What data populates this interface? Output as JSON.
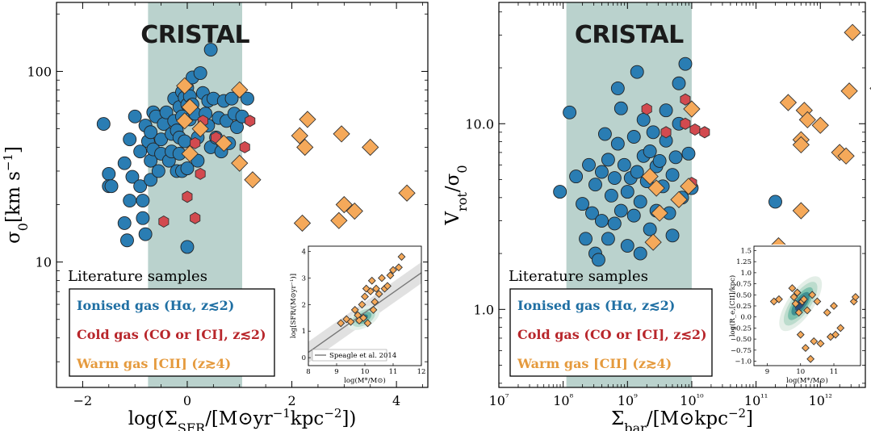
{
  "colors": {
    "ionised": "#2a7db3",
    "cold": "#d24a4f",
    "warm": "#f5a95a",
    "band": "#b6d0ca",
    "inset_line": "#777777"
  },
  "chart_data": [
    {
      "type": "scatter",
      "brand": "CRISTAL",
      "xlabel": "log(Σ_SFR/[M⊙yr⁻¹kpc⁻²])",
      "ylabel": "σ₀[km s⁻¹]",
      "xlim": [
        -2.5,
        4.6
      ],
      "ylim": [
        2.2,
        230
      ],
      "yscale": "log",
      "band": [
        -0.75,
        1.05
      ],
      "x_ticks": [
        "−2",
        "0",
        "2",
        "4"
      ],
      "y_ticks": [
        "10",
        "100"
      ],
      "legend": {
        "title": "Literature samples",
        "entries": [
          "Ionised gas (Hα, z≲2)",
          "Cold gas (CO or [CI], z≲2)",
          "Warm gas [CII] (z≳4)"
        ]
      },
      "series": [
        {
          "name": "Ionised gas (Hα, z≲2)",
          "marker": "circle",
          "points": [
            [
              -1.6,
              53
            ],
            [
              -1.5,
              29
            ],
            [
              -1.5,
              25
            ],
            [
              -1.45,
              25
            ],
            [
              -1.2,
              33
            ],
            [
              -1.2,
              16
            ],
            [
              -1.15,
              13
            ],
            [
              -1.1,
              44
            ],
            [
              -1.1,
              21
            ],
            [
              -1.05,
              28
            ],
            [
              -1.0,
              58
            ],
            [
              -0.9,
              38
            ],
            [
              -0.9,
              25
            ],
            [
              -0.85,
              21
            ],
            [
              -0.85,
              17
            ],
            [
              -0.8,
              14
            ],
            [
              -0.8,
              52
            ],
            [
              -0.75,
              43
            ],
            [
              -0.7,
              48
            ],
            [
              -0.7,
              34
            ],
            [
              -0.7,
              27
            ],
            [
              -0.65,
              61
            ],
            [
              -0.65,
              39
            ],
            [
              -0.6,
              58
            ],
            [
              -0.55,
              30
            ],
            [
              -0.5,
              44
            ],
            [
              -0.5,
              37
            ],
            [
              -0.45,
              53
            ],
            [
              -0.4,
              61
            ],
            [
              -0.35,
              34
            ],
            [
              -0.3,
              47
            ],
            [
              -0.3,
              38
            ],
            [
              -0.25,
              72
            ],
            [
              -0.25,
              55
            ],
            [
              -0.2,
              49
            ],
            [
              -0.2,
              30
            ],
            [
              -0.15,
              65
            ],
            [
              -0.15,
              45
            ],
            [
              -0.15,
              37
            ],
            [
              -0.1,
              78
            ],
            [
              -0.1,
              58
            ],
            [
              -0.1,
              30
            ],
            [
              -0.05,
              73
            ],
            [
              -0.05,
              43
            ],
            [
              0.0,
              82
            ],
            [
              0.0,
              67
            ],
            [
              0.0,
              31
            ],
            [
              0.0,
              12
            ],
            [
              0.05,
              74
            ],
            [
              0.05,
              56
            ],
            [
              0.1,
              93
            ],
            [
              0.1,
              67
            ],
            [
              0.15,
              60
            ],
            [
              0.2,
              45
            ],
            [
              0.2,
              34
            ],
            [
              0.25,
              98
            ],
            [
              0.3,
              77
            ],
            [
              0.35,
              60
            ],
            [
              0.4,
              70
            ],
            [
              0.4,
              52
            ],
            [
              0.45,
              130
            ],
            [
              0.45,
              40
            ],
            [
              0.5,
              72
            ],
            [
              0.55,
              45
            ],
            [
              0.6,
              57
            ],
            [
              0.65,
              38
            ],
            [
              0.7,
              70
            ],
            [
              0.75,
              55
            ],
            [
              0.8,
              42
            ],
            [
              0.85,
              72
            ],
            [
              0.9,
              60
            ],
            [
              0.95,
              51
            ],
            [
              1.05,
              58
            ],
            [
              1.15,
              72
            ]
          ]
        },
        {
          "name": "Cold gas (CO or [CI], z≲2)",
          "marker": "hexagon",
          "points": [
            [
              -0.45,
              16.3
            ],
            [
              0.0,
              22
            ],
            [
              0.15,
              42
            ],
            [
              0.15,
              17
            ],
            [
              0.25,
              29
            ],
            [
              0.3,
              55
            ],
            [
              0.55,
              45
            ],
            [
              1.1,
              40
            ],
            [
              1.2,
              55
            ]
          ]
        },
        {
          "name": "Warm gas [CII] (z≳4)",
          "marker": "diamond",
          "points": [
            [
              -0.05,
              84
            ],
            [
              -0.05,
              55
            ],
            [
              0.05,
              37
            ],
            [
              0.05,
              65
            ],
            [
              0.25,
              50
            ],
            [
              0.7,
              42
            ],
            [
              1.0,
              80
            ],
            [
              1.0,
              33
            ],
            [
              1.25,
              27
            ],
            [
              2.15,
              46
            ],
            [
              2.2,
              16
            ],
            [
              2.25,
              40
            ],
            [
              2.3,
              56
            ],
            [
              2.9,
              16.5
            ],
            [
              2.95,
              47
            ],
            [
              3.0,
              20
            ],
            [
              3.2,
              18.5
            ],
            [
              3.5,
              40
            ],
            [
              4.2,
              23
            ]
          ]
        }
      ],
      "inset": {
        "xlabel": "log(M*/M⊙)",
        "ylabel": "log[SFR/(M⊙yr⁻¹)]",
        "x_ticks": [
          "8",
          "9",
          "10",
          "11",
          "12"
        ],
        "y_ticks": [
          "0",
          "1",
          "2",
          "3",
          "4"
        ],
        "xlim": [
          8,
          12
        ],
        "ylim": [
          -0.3,
          4.2
        ],
        "relation_label": "Speagle et al. 2014",
        "relation": [
          [
            8,
            0.2
          ],
          [
            12,
            3.2
          ]
        ],
        "points": [
          [
            9.15,
            1.3
          ],
          [
            9.35,
            1.45
          ],
          [
            9.5,
            1.35
          ],
          [
            9.65,
            1.8
          ],
          [
            9.75,
            1.6
          ],
          [
            9.8,
            1.4
          ],
          [
            9.9,
            2.0
          ],
          [
            9.95,
            1.5
          ],
          [
            10.0,
            2.3
          ],
          [
            10.05,
            2.6
          ],
          [
            10.1,
            1.3
          ],
          [
            10.2,
            2.5
          ],
          [
            10.25,
            2.9
          ],
          [
            10.3,
            1.8
          ],
          [
            10.35,
            2.1
          ],
          [
            10.4,
            2.6
          ],
          [
            10.5,
            2.4
          ],
          [
            10.6,
            3.0
          ],
          [
            10.7,
            2.6
          ],
          [
            10.8,
            2.7
          ],
          [
            10.9,
            3.1
          ],
          [
            11.0,
            3.3
          ],
          [
            11.2,
            3.4
          ],
          [
            11.3,
            3.8
          ]
        ]
      }
    },
    {
      "type": "scatter",
      "brand": "CRISTAL",
      "xlabel": "Σ_bar/[M⊙kpc⁻²]",
      "ylabel": "V_rot/σ₀",
      "xlim": [
        7.0,
        12.7
      ],
      "ylim": [
        0.38,
        45
      ],
      "xscale": "log",
      "yscale": "log",
      "band": [
        8.05,
        10.0
      ],
      "x_ticks": [
        "10⁷",
        "10⁸",
        "10⁹",
        "10¹⁰",
        "10¹¹",
        "10¹²"
      ],
      "y_ticks": [
        "1.0",
        "10.0"
      ],
      "legend": {
        "title": "Literature samples",
        "entries": [
          "Ionised gas (Hα, z≲2)",
          "Cold gas (CO or [CI], z≲2)",
          "Warm gas [CII] (z≳4)"
        ]
      },
      "series": [
        {
          "name": "Ionised gas (Hα, z≲2)",
          "marker": "circle",
          "points": [
            [
              7.95,
              4.3
            ],
            [
              8.1,
              11.5
            ],
            [
              8.2,
              5.2
            ],
            [
              8.3,
              3.7
            ],
            [
              8.35,
              2.4
            ],
            [
              8.4,
              6.0
            ],
            [
              8.45,
              3.3
            ],
            [
              8.5,
              4.7
            ],
            [
              8.5,
              2.0
            ],
            [
              8.55,
              1.85
            ],
            [
              8.6,
              5.5
            ],
            [
              8.6,
              3.0
            ],
            [
              8.65,
              8.8
            ],
            [
              8.7,
              6.4
            ],
            [
              8.7,
              2.4
            ],
            [
              8.75,
              4.1
            ],
            [
              8.8,
              5.1
            ],
            [
              8.8,
              2.9
            ],
            [
              8.85,
              15.5
            ],
            [
              8.85,
              7.8
            ],
            [
              8.9,
              12.1
            ],
            [
              8.9,
              3.4
            ],
            [
              8.95,
              6.0
            ],
            [
              9.0,
              4.3
            ],
            [
              9.0,
              2.2
            ],
            [
              9.05,
              5.1
            ],
            [
              9.1,
              8.5
            ],
            [
              9.1,
              3.2
            ],
            [
              9.15,
              19.0
            ],
            [
              9.15,
              5.5
            ],
            [
              9.2,
              3.8
            ],
            [
              9.2,
              2.0
            ],
            [
              9.25,
              10.5
            ],
            [
              9.25,
              6.7
            ],
            [
              9.3,
              4.9
            ],
            [
              9.35,
              7.1
            ],
            [
              9.35,
              2.7
            ],
            [
              9.4,
              9.0
            ],
            [
              9.45,
              5.9
            ],
            [
              9.45,
              3.4
            ],
            [
              9.5,
              6.3
            ],
            [
              9.55,
              4.6
            ],
            [
              9.6,
              11.8
            ],
            [
              9.6,
              8.1
            ],
            [
              9.65,
              3.3
            ],
            [
              9.7,
              5.3
            ],
            [
              9.7,
              2.5
            ],
            [
              9.75,
              6.6
            ],
            [
              9.8,
              16.5
            ],
            [
              9.8,
              10.0
            ],
            [
              9.85,
              4.0
            ],
            [
              9.9,
              21.0
            ],
            [
              9.95,
              6.9
            ],
            [
              10.0,
              4.5
            ],
            [
              11.3,
              3.8
            ]
          ]
        },
        {
          "name": "Cold gas (CO or [CI], z≲2)",
          "marker": "hexagon",
          "points": [
            [
              9.3,
              12.0
            ],
            [
              9.6,
              9.0
            ],
            [
              9.9,
              10.0
            ],
            [
              9.9,
              13.5
            ],
            [
              10.0,
              4.8
            ],
            [
              10.05,
              9.3
            ],
            [
              10.2,
              9.0
            ]
          ]
        },
        {
          "name": "Warm gas [CII] (z≳4)",
          "marker": "diamond",
          "points": [
            [
              8.8,
              1.0
            ],
            [
              9.35,
              5.2
            ],
            [
              9.4,
              2.3
            ],
            [
              9.45,
              4.5
            ],
            [
              9.5,
              3.3
            ],
            [
              9.8,
              3.9
            ],
            [
              9.95,
              4.6
            ],
            [
              10.0,
              12.0
            ],
            [
              11.35,
              2.2
            ],
            [
              11.5,
              13.0
            ],
            [
              11.7,
              8.2
            ],
            [
              11.7,
              3.4
            ],
            [
              11.7,
              7.7
            ],
            [
              11.75,
              11.8
            ],
            [
              11.8,
              10.5
            ],
            [
              12.0,
              9.8
            ],
            [
              12.3,
              7.0
            ],
            [
              12.4,
              6.7
            ],
            [
              12.45,
              15.0
            ],
            [
              12.5,
              31.0
            ],
            [
              12.9,
              15.5
            ]
          ]
        }
      ],
      "inset": {
        "xlabel": "log(M*/M⊙)",
        "ylabel": "log(R_e,[CII]/kpc)",
        "x_ticks": [
          "9",
          "10",
          "11"
        ],
        "y_ticks": [
          "−1.0",
          "−0.75",
          "−0.50",
          "−0.25",
          "0.0",
          "0.25",
          "0.50",
          "0.75",
          "1.0",
          "1.25",
          "1.5"
        ],
        "xlim": [
          8.6,
          11.8
        ],
        "ylim": [
          -1.1,
          1.6
        ],
        "points": [
          [
            9.2,
            0.35
          ],
          [
            9.35,
            0.4
          ],
          [
            9.75,
            0.65
          ],
          [
            9.8,
            0.45
          ],
          [
            9.85,
            0.3
          ],
          [
            9.9,
            0.55
          ],
          [
            9.95,
            0.1
          ],
          [
            10.0,
            -0.4
          ],
          [
            10.05,
            0.35
          ],
          [
            10.1,
            0.4
          ],
          [
            10.15,
            -0.7
          ],
          [
            10.2,
            0.15
          ],
          [
            10.3,
            -0.95
          ],
          [
            10.35,
            0.5
          ],
          [
            10.4,
            -0.55
          ],
          [
            10.5,
            0.35
          ],
          [
            10.6,
            -0.6
          ],
          [
            10.8,
            0.1
          ],
          [
            10.9,
            -0.45
          ],
          [
            11.05,
            -0.4
          ],
          [
            11.0,
            0.25
          ],
          [
            11.2,
            -0.25
          ],
          [
            11.6,
            0.35
          ],
          [
            11.65,
            0.45
          ]
        ]
      }
    }
  ]
}
